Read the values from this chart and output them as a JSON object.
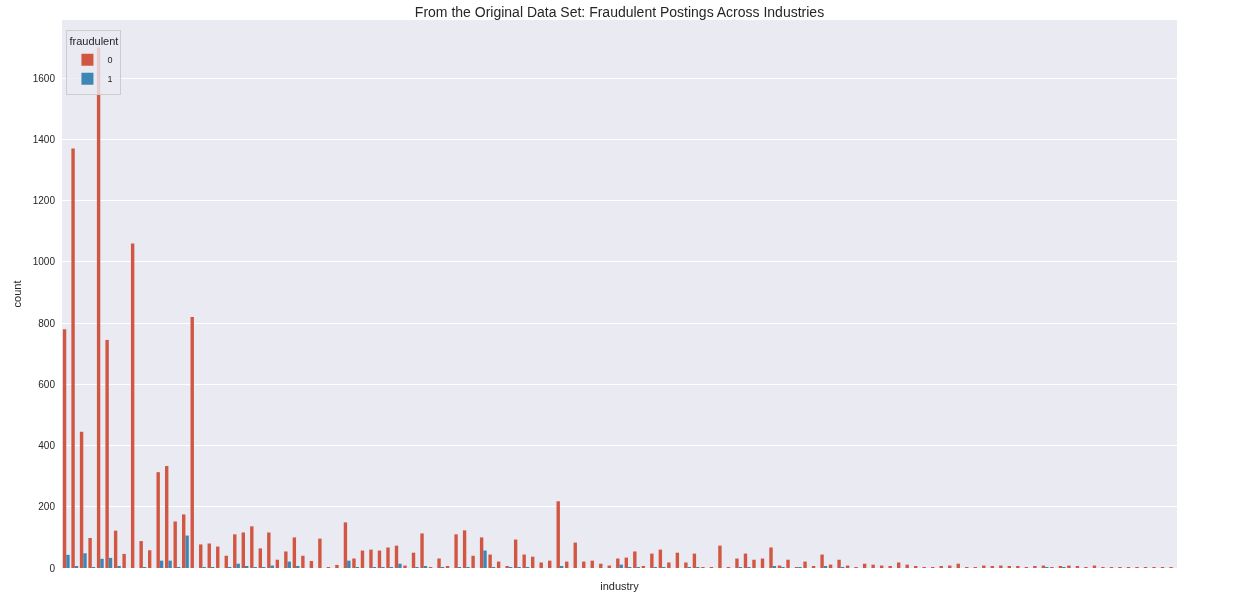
{
  "chart_data": {
    "type": "bar",
    "title": "From the Original Data Set: Fraudulent Postings Across Industries",
    "xlabel": "industry",
    "ylabel": "count",
    "legend_title": "fraudulent",
    "categories": [
      null,
      null,
      null,
      null,
      null,
      null,
      null,
      null,
      null,
      null,
      null,
      null,
      null,
      null,
      null,
      null,
      null,
      null,
      null,
      null,
      null,
      null,
      null,
      null,
      null,
      null,
      null,
      null,
      null,
      null,
      null,
      null,
      null,
      null,
      null,
      null,
      null,
      null,
      null,
      null,
      null,
      null,
      null,
      null,
      null,
      null,
      null,
      null,
      null,
      null,
      null,
      null,
      null,
      null,
      null,
      null,
      null,
      null,
      null,
      null,
      null,
      null,
      null,
      null,
      null,
      null,
      null,
      null,
      null,
      null,
      null,
      null,
      null,
      null,
      null,
      null,
      null,
      null,
      null,
      null,
      null,
      null,
      null,
      null,
      null,
      null,
      null,
      null,
      null,
      null,
      null,
      null,
      null,
      null,
      null,
      null,
      null,
      null,
      null,
      null,
      null,
      null,
      null,
      null,
      null,
      null,
      null,
      null,
      null,
      null,
      null,
      null,
      null,
      null,
      null,
      null,
      null,
      null,
      null,
      null,
      null,
      null,
      null,
      null,
      null,
      null,
      null,
      null,
      null,
      null,
      null
    ],
    "series": [
      {
        "name": "0",
        "color": "#d25743",
        "values": [
          780,
          1370,
          445,
          98,
          1700,
          745,
          122,
          46,
          1060,
          88,
          58,
          313,
          333,
          152,
          175,
          820,
          77,
          80,
          70,
          40,
          110,
          116,
          136,
          64,
          116,
          27,
          54,
          100,
          40,
          23,
          96,
          2,
          10,
          149,
          31,
          57,
          60,
          57,
          67,
          73,
          8,
          50,
          113,
          2,
          31,
          4,
          110,
          123,
          40,
          100,
          44,
          21,
          4,
          93,
          44,
          37,
          18,
          24,
          218,
          21,
          83,
          21,
          24,
          14,
          8,
          31,
          34,
          54,
          4,
          47,
          60,
          18,
          50,
          18,
          47,
          2,
          2,
          73,
          2,
          31,
          47,
          27,
          31,
          67,
          8,
          27,
          2,
          21,
          4,
          44,
          11,
          27,
          8,
          2,
          14,
          11,
          8,
          4,
          18,
          11,
          4,
          2,
          2,
          4,
          8,
          14,
          2,
          2,
          8,
          4,
          8,
          4,
          4,
          2,
          4,
          8,
          2,
          4,
          8,
          4,
          2,
          8,
          2,
          2,
          2,
          2,
          2,
          2,
          2,
          2,
          2
        ]
      },
      {
        "name": "1",
        "color": "#3d87b5",
        "values": [
          43,
          5,
          48,
          2,
          30,
          33,
          4,
          null,
          null,
          2,
          null,
          24,
          24,
          2,
          106,
          null,
          2,
          2,
          null,
          2,
          14,
          5,
          2,
          2,
          8,
          null,
          21,
          5,
          null,
          null,
          null,
          null,
          null,
          24,
          2,
          null,
          2,
          2,
          2,
          14,
          null,
          2,
          4,
          null,
          2,
          null,
          2,
          2,
          null,
          57,
          2,
          null,
          2,
          2,
          2,
          null,
          null,
          null,
          4,
          null,
          null,
          null,
          null,
          null,
          null,
          11,
          2,
          2,
          null,
          2,
          2,
          null,
          null,
          2,
          2,
          null,
          null,
          null,
          null,
          2,
          2,
          null,
          null,
          4,
          2,
          null,
          2,
          null,
          null,
          4,
          null,
          2,
          null,
          null,
          null,
          null,
          null,
          null,
          null,
          null,
          null,
          null,
          null,
          null,
          null,
          null,
          null,
          null,
          null,
          null,
          null,
          null,
          null,
          null,
          null,
          2,
          null,
          2,
          null,
          null,
          null,
          null,
          null,
          null,
          null,
          null,
          null,
          null,
          null,
          null,
          null
        ]
      }
    ],
    "ylim": [
      0,
      1790
    ],
    "yticks": [
      0,
      200,
      400,
      600,
      800,
      1000,
      1200,
      1400,
      1600
    ],
    "grid": "y",
    "legend": "top left",
    "tick_labels": "y"
  }
}
